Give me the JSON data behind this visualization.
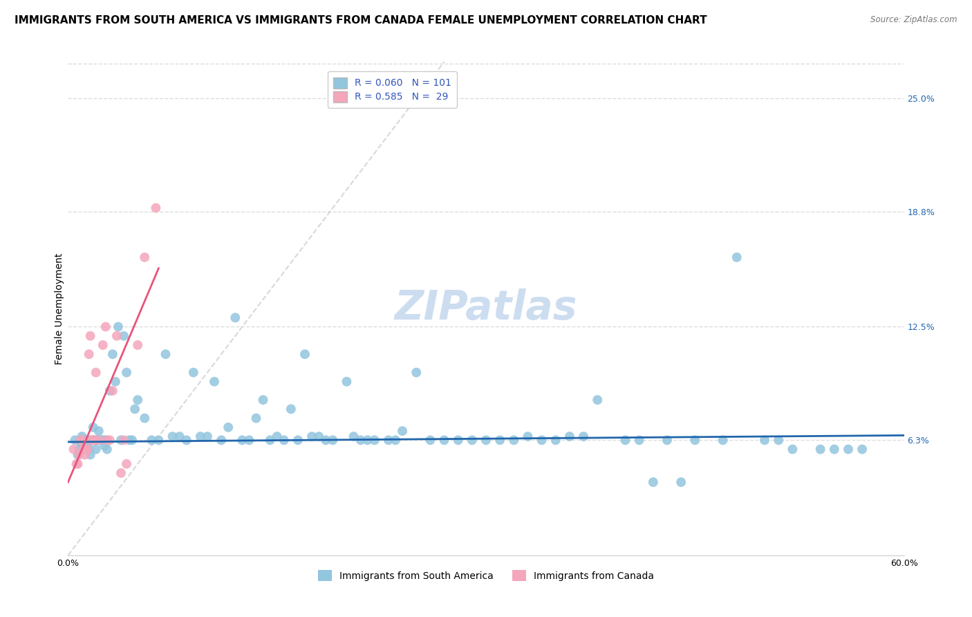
{
  "title": "IMMIGRANTS FROM SOUTH AMERICA VS IMMIGRANTS FROM CANADA FEMALE UNEMPLOYMENT CORRELATION CHART",
  "source": "Source: ZipAtlas.com",
  "ylabel": "Female Unemployment",
  "xlim": [
    0.0,
    0.6
  ],
  "ylim": [
    0.0,
    0.27
  ],
  "ytick_labels_right": [
    "25.0%",
    "18.8%",
    "12.5%",
    "6.3%"
  ],
  "ytick_values_right": [
    0.25,
    0.188,
    0.125,
    0.063
  ],
  "blue_color": "#92c5de",
  "pink_color": "#f4a6bb",
  "blue_line_color": "#2166ac",
  "pink_line_color": "#e8537a",
  "diagonal_color": "#c8c8c8",
  "R_blue": 0.06,
  "N_blue": 101,
  "R_pink": 0.585,
  "N_pink": 29,
  "legend_R_color": "#3355bb",
  "legend_label_blue": "Immigrants from South America",
  "legend_label_pink": "Immigrants from Canada",
  "watermark": "ZIPatlas",
  "blue_scatter_x": [
    0.005,
    0.007,
    0.008,
    0.009,
    0.01,
    0.01,
    0.012,
    0.013,
    0.014,
    0.015,
    0.015,
    0.016,
    0.017,
    0.018,
    0.019,
    0.02,
    0.02,
    0.021,
    0.022,
    0.023,
    0.024,
    0.025,
    0.026,
    0.027,
    0.028,
    0.03,
    0.032,
    0.034,
    0.036,
    0.038,
    0.04,
    0.042,
    0.044,
    0.046,
    0.048,
    0.05,
    0.055,
    0.06,
    0.065,
    0.07,
    0.075,
    0.08,
    0.085,
    0.09,
    0.095,
    0.1,
    0.105,
    0.11,
    0.115,
    0.12,
    0.125,
    0.13,
    0.135,
    0.14,
    0.145,
    0.15,
    0.155,
    0.16,
    0.165,
    0.17,
    0.175,
    0.18,
    0.185,
    0.19,
    0.2,
    0.205,
    0.21,
    0.215,
    0.22,
    0.23,
    0.235,
    0.24,
    0.25,
    0.26,
    0.27,
    0.28,
    0.29,
    0.3,
    0.31,
    0.32,
    0.33,
    0.34,
    0.35,
    0.36,
    0.37,
    0.38,
    0.4,
    0.41,
    0.42,
    0.43,
    0.44,
    0.45,
    0.47,
    0.48,
    0.5,
    0.51,
    0.52,
    0.54,
    0.55,
    0.56,
    0.57
  ],
  "blue_scatter_y": [
    0.063,
    0.055,
    0.058,
    0.062,
    0.06,
    0.065,
    0.063,
    0.058,
    0.06,
    0.063,
    0.058,
    0.055,
    0.063,
    0.07,
    0.063,
    0.063,
    0.058,
    0.063,
    0.068,
    0.063,
    0.063,
    0.063,
    0.06,
    0.063,
    0.058,
    0.09,
    0.11,
    0.095,
    0.125,
    0.063,
    0.12,
    0.1,
    0.063,
    0.063,
    0.08,
    0.085,
    0.075,
    0.063,
    0.063,
    0.11,
    0.065,
    0.065,
    0.063,
    0.1,
    0.065,
    0.065,
    0.095,
    0.063,
    0.07,
    0.13,
    0.063,
    0.063,
    0.075,
    0.085,
    0.063,
    0.065,
    0.063,
    0.08,
    0.063,
    0.11,
    0.065,
    0.065,
    0.063,
    0.063,
    0.095,
    0.065,
    0.063,
    0.063,
    0.063,
    0.063,
    0.063,
    0.068,
    0.1,
    0.063,
    0.063,
    0.063,
    0.063,
    0.063,
    0.063,
    0.063,
    0.065,
    0.063,
    0.063,
    0.065,
    0.065,
    0.085,
    0.063,
    0.063,
    0.04,
    0.063,
    0.04,
    0.063,
    0.063,
    0.163,
    0.063,
    0.063,
    0.058,
    0.058,
    0.058,
    0.058,
    0.058
  ],
  "pink_scatter_x": [
    0.004,
    0.006,
    0.007,
    0.008,
    0.009,
    0.01,
    0.011,
    0.012,
    0.013,
    0.014,
    0.015,
    0.016,
    0.017,
    0.018,
    0.019,
    0.02,
    0.022,
    0.025,
    0.027,
    0.028,
    0.03,
    0.032,
    0.035,
    0.038,
    0.04,
    0.042,
    0.05,
    0.055,
    0.063
  ],
  "pink_scatter_y": [
    0.058,
    0.05,
    0.05,
    0.055,
    0.063,
    0.063,
    0.058,
    0.055,
    0.058,
    0.058,
    0.11,
    0.12,
    0.063,
    0.063,
    0.063,
    0.1,
    0.063,
    0.115,
    0.125,
    0.063,
    0.063,
    0.09,
    0.12,
    0.045,
    0.063,
    0.05,
    0.115,
    0.163,
    0.19
  ],
  "title_fontsize": 11,
  "axis_label_fontsize": 10,
  "tick_fontsize": 9,
  "legend_fontsize": 10,
  "watermark_fontsize": 42,
  "watermark_color": "#ccddf0",
  "background_color": "#ffffff",
  "grid_color": "#dddddd"
}
